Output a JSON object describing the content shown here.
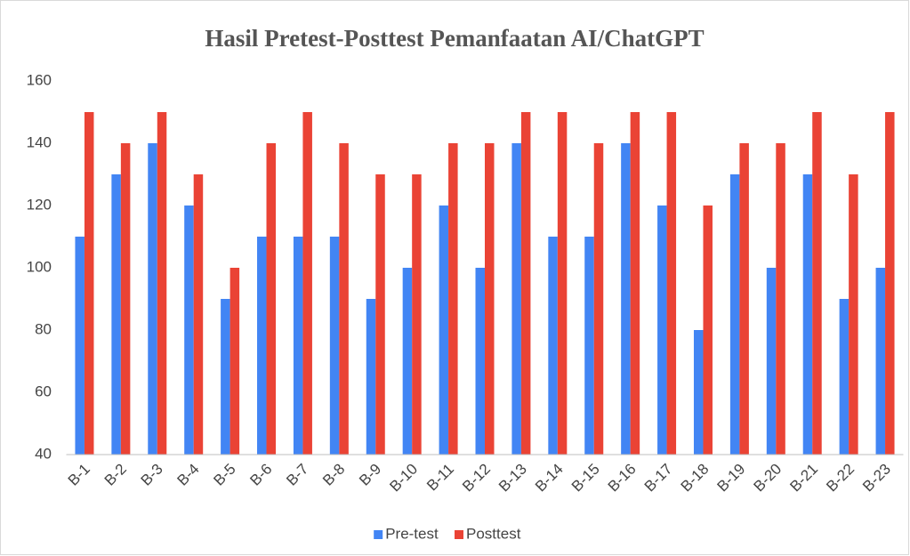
{
  "chart_data": {
    "type": "bar",
    "title": "Hasil Pretest-Posttest Pemanfaatan AI/ChatGPT",
    "categories": [
      "B-1",
      "B-2",
      "B-3",
      "B-4",
      "B-5",
      "B-6",
      "B-7",
      "B-8",
      "B-9",
      "B-10",
      "B-11",
      "B-12",
      "B-13",
      "B-14",
      "B-15",
      "B-16",
      "B-17",
      "B-18",
      "B-19",
      "B-20",
      "B-21",
      "B-22",
      "B-23"
    ],
    "series": [
      {
        "name": "Pre-test",
        "color": "#4285f4",
        "values": [
          110,
          130,
          140,
          120,
          90,
          110,
          110,
          110,
          90,
          100,
          120,
          100,
          140,
          110,
          110,
          140,
          120,
          80,
          130,
          100,
          130,
          90,
          100
        ]
      },
      {
        "name": "Posttest",
        "color": "#ea4335",
        "values": [
          150,
          140,
          150,
          130,
          100,
          140,
          150,
          140,
          130,
          130,
          140,
          140,
          150,
          150,
          140,
          150,
          150,
          120,
          140,
          140,
          150,
          130,
          150
        ]
      }
    ],
    "ylim": [
      40,
      160
    ],
    "yticks": [
      40,
      60,
      80,
      100,
      120,
      140,
      160
    ],
    "grid": false,
    "legend": "bottom"
  }
}
